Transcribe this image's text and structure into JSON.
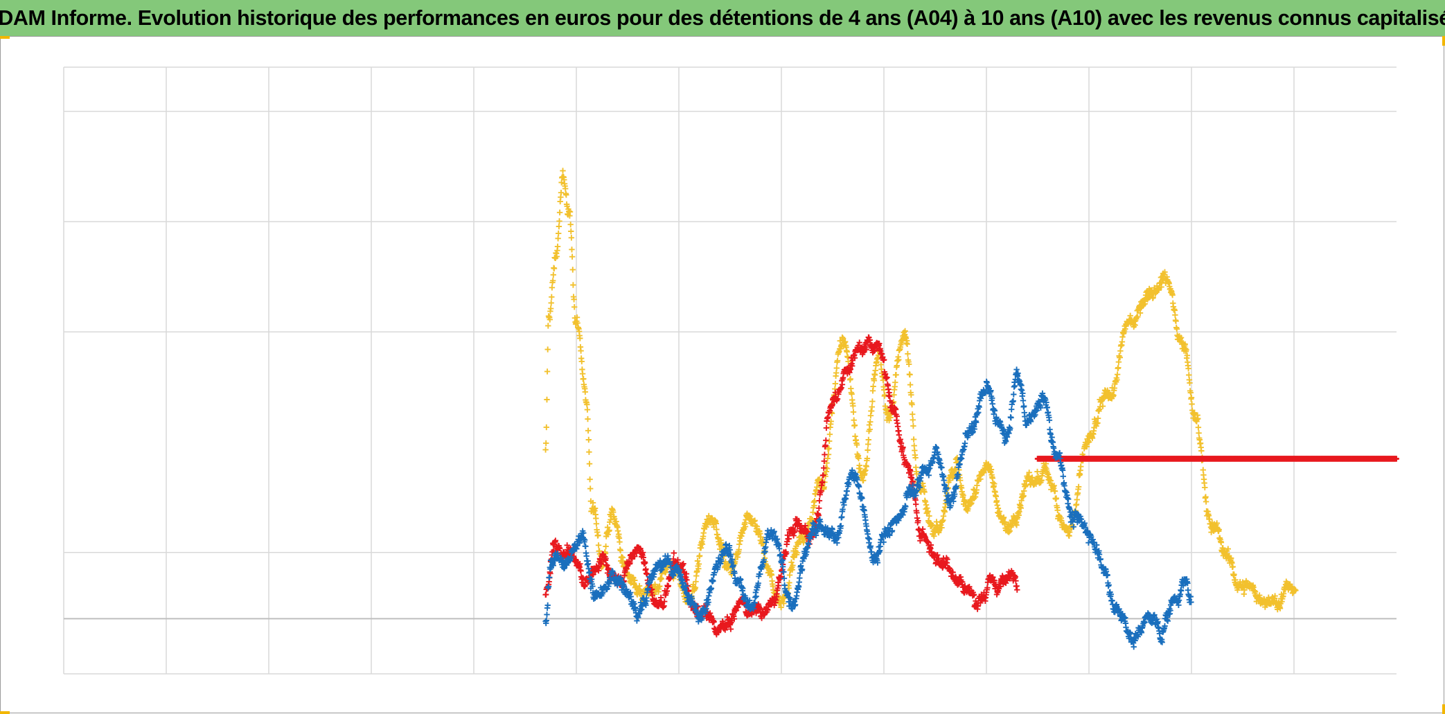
{
  "title": "ADAM Informe. Evolution historique des performances en euros pour des détentions de 4 ans (A04) à 10 ans (A10) avec les revenus connus capitalisés",
  "colors": {
    "title_background": "#84c87a",
    "grid": "#d9d9d9",
    "axis": "#bfbfbf",
    "corner_marker": "#f2b600"
  },
  "chart_data": {
    "type": "scatter",
    "marker": "plus",
    "grid": true,
    "legend": "none",
    "axis_labels_visible": false,
    "xlim": [
      0,
      13
    ],
    "ylim": [
      -0.5,
      5
    ],
    "x_gridlines": [
      1,
      2,
      3,
      4,
      5,
      6,
      7,
      8,
      9,
      10,
      11,
      12
    ],
    "y_gridlines": [
      0,
      0.6,
      2.6,
      3.6,
      4.6
    ],
    "series": [
      {
        "color": "#f2c12e",
        "keyframes": [
          [
            4.7,
            1.5
          ],
          [
            4.73,
            2.7
          ],
          [
            4.8,
            3.3
          ],
          [
            4.87,
            4.0
          ],
          [
            4.93,
            3.6
          ],
          [
            5.0,
            2.7
          ],
          [
            5.1,
            2.0
          ],
          [
            5.15,
            1.0
          ],
          [
            5.25,
            0.55
          ],
          [
            5.35,
            0.9
          ],
          [
            5.5,
            0.4
          ],
          [
            5.7,
            0.2
          ],
          [
            5.9,
            0.5
          ],
          [
            6.1,
            0.2
          ],
          [
            6.3,
            0.9
          ],
          [
            6.5,
            0.4
          ],
          [
            6.7,
            0.9
          ],
          [
            7.0,
            0.2
          ],
          [
            7.2,
            0.7
          ],
          [
            7.4,
            1.3
          ],
          [
            7.6,
            2.5
          ],
          [
            7.8,
            1.3
          ],
          [
            7.95,
            2.4
          ],
          [
            8.05,
            1.8
          ],
          [
            8.2,
            2.6
          ],
          [
            8.35,
            1.2
          ],
          [
            8.5,
            0.8
          ],
          [
            8.7,
            1.4
          ],
          [
            8.8,
            1.0
          ],
          [
            9.0,
            1.4
          ],
          [
            9.2,
            0.8
          ],
          [
            9.4,
            1.2
          ],
          [
            9.6,
            1.3
          ],
          [
            9.8,
            0.8
          ],
          [
            10.0,
            1.6
          ],
          [
            10.2,
            2.0
          ],
          [
            10.4,
            2.7
          ],
          [
            10.6,
            3.0
          ],
          [
            10.75,
            3.1
          ],
          [
            10.9,
            2.6
          ],
          [
            11.05,
            1.8
          ],
          [
            11.2,
            0.8
          ],
          [
            11.5,
            0.3
          ],
          [
            11.8,
            0.15
          ],
          [
            12.02,
            0.3
          ]
        ]
      },
      {
        "color": "#e8191e",
        "keyframes": [
          [
            4.7,
            0.2
          ],
          [
            4.8,
            0.7
          ],
          [
            4.95,
            0.6
          ],
          [
            5.1,
            0.3
          ],
          [
            5.25,
            0.55
          ],
          [
            5.4,
            0.35
          ],
          [
            5.6,
            0.6
          ],
          [
            5.8,
            0.1
          ],
          [
            6.0,
            0.5
          ],
          [
            6.2,
            0.0
          ],
          [
            6.45,
            -0.1
          ],
          [
            6.6,
            0.1
          ],
          [
            6.9,
            0.1
          ],
          [
            7.1,
            0.8
          ],
          [
            7.3,
            0.8
          ],
          [
            7.5,
            2.0
          ],
          [
            7.65,
            2.3
          ],
          [
            7.8,
            2.5
          ],
          [
            7.95,
            2.5
          ],
          [
            8.1,
            1.9
          ],
          [
            8.25,
            1.3
          ],
          [
            8.35,
            0.8
          ],
          [
            8.6,
            0.5
          ],
          [
            8.9,
            0.2
          ],
          [
            9.1,
            0.3
          ],
          [
            9.3,
            0.4
          ]
        ]
      },
      {
        "color": "#e8191e",
        "keyframes": [
          [
            9.5,
            1.45
          ],
          [
            13.0,
            1.45
          ]
        ]
      },
      {
        "color": "#1a6fbd",
        "keyframes": [
          [
            4.7,
            0.0
          ],
          [
            4.75,
            0.55
          ],
          [
            4.9,
            0.6
          ],
          [
            5.05,
            0.7
          ],
          [
            5.2,
            0.2
          ],
          [
            5.4,
            0.35
          ],
          [
            5.6,
            0.1
          ],
          [
            5.8,
            0.5
          ],
          [
            6.0,
            0.4
          ],
          [
            6.2,
            0.0
          ],
          [
            6.45,
            0.6
          ],
          [
            6.7,
            0.1
          ],
          [
            6.9,
            0.8
          ],
          [
            7.1,
            0.2
          ],
          [
            7.3,
            0.8
          ],
          [
            7.5,
            0.7
          ],
          [
            7.7,
            1.3
          ],
          [
            7.9,
            0.6
          ],
          [
            8.1,
            0.9
          ],
          [
            8.3,
            1.2
          ],
          [
            8.5,
            1.5
          ],
          [
            8.65,
            1.1
          ],
          [
            8.85,
            1.7
          ],
          [
            9.0,
            2.1
          ],
          [
            9.1,
            1.8
          ],
          [
            9.2,
            1.6
          ],
          [
            9.3,
            2.2
          ],
          [
            9.4,
            1.8
          ],
          [
            9.55,
            2.0
          ],
          [
            9.7,
            1.5
          ],
          [
            9.85,
            0.9
          ],
          [
            10.0,
            0.8
          ],
          [
            10.1,
            0.6
          ],
          [
            10.25,
            0.1
          ],
          [
            10.45,
            -0.2
          ],
          [
            10.55,
            0.0
          ],
          [
            10.7,
            -0.1
          ],
          [
            10.85,
            0.2
          ],
          [
            10.95,
            0.35
          ],
          [
            11.0,
            0.2
          ]
        ]
      }
    ]
  }
}
